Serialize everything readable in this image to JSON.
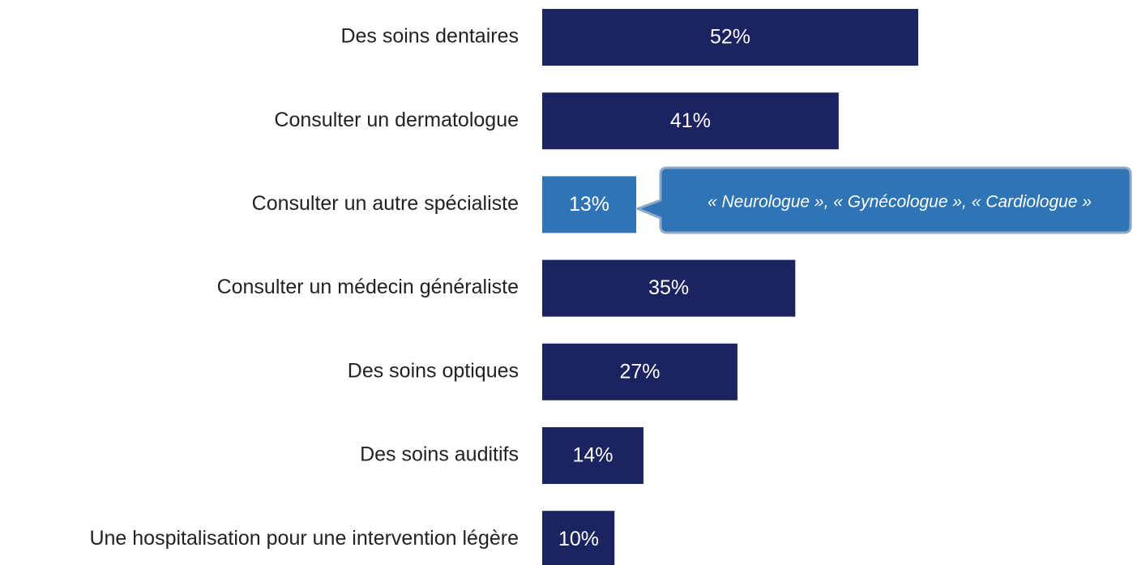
{
  "chart_data": {
    "type": "bar",
    "orientation": "horizontal",
    "categories": [
      "Des soins dentaires",
      "Consulter un dermatologue",
      "Consulter un autre spécialiste",
      "Consulter un médecin généraliste",
      "Des soins optiques",
      "Des soins auditifs",
      "Une hospitalisation pour une intervention légère"
    ],
    "values": [
      52,
      41,
      13,
      35,
      27,
      14,
      10
    ],
    "value_labels": [
      "52%",
      "41%",
      "13%",
      "35%",
      "27%",
      "14%",
      "10%"
    ],
    "colors": [
      "#1b2361",
      "#1b2361",
      "#2f74b5",
      "#1b2361",
      "#1b2361",
      "#1b2361",
      "#1b2361"
    ],
    "annotation": "« Neurologue », « Gynécologue », « Cardiologue »"
  }
}
